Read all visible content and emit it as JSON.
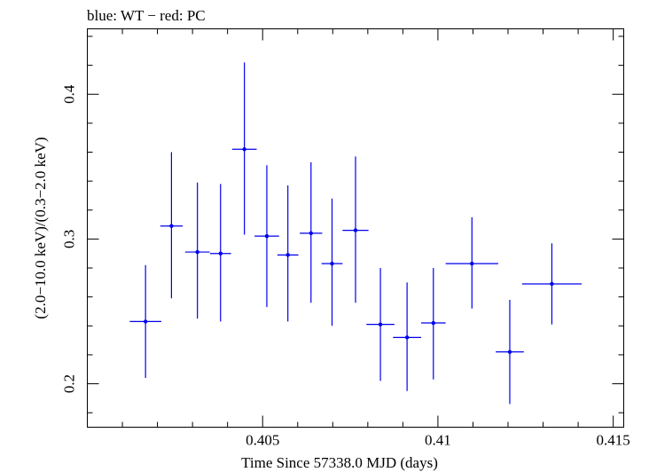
{
  "chart_data": {
    "type": "scatter",
    "title": "blue: WT − red: PC",
    "xlabel": "Time Since 57338.0 MJD (days)",
    "ylabel": "(2.0−10.0 keV)/(0.3−2.0 keV)",
    "xlim": [
      0.4,
      0.4153
    ],
    "ylim": [
      0.17,
      0.4452
    ],
    "x_major_ticks": [
      0.405,
      0.41,
      0.415
    ],
    "x_tick_labels": [
      "0.405",
      "0.41",
      "0.415"
    ],
    "y_major_ticks": [
      0.2,
      0.3,
      0.4
    ],
    "y_tick_labels": [
      "0.2",
      "0.3",
      "0.4"
    ],
    "x_minor_step": 0.001,
    "y_minor_step": 0.02,
    "series": [
      {
        "name": "WT",
        "color": "#0000ee",
        "points": [
          {
            "x": 0.40166,
            "xerr": 0.00045,
            "y": 0.243,
            "ylo": 0.204,
            "yhi": 0.282
          },
          {
            "x": 0.4024,
            "xerr": 0.00032,
            "y": 0.309,
            "ylo": 0.259,
            "yhi": 0.36
          },
          {
            "x": 0.40314,
            "xerr": 0.00035,
            "y": 0.291,
            "ylo": 0.245,
            "yhi": 0.339
          },
          {
            "x": 0.4038,
            "xerr": 0.0003,
            "y": 0.29,
            "ylo": 0.243,
            "yhi": 0.338
          },
          {
            "x": 0.40448,
            "xerr": 0.00035,
            "y": 0.362,
            "ylo": 0.303,
            "yhi": 0.422
          },
          {
            "x": 0.40512,
            "xerr": 0.00035,
            "y": 0.302,
            "ylo": 0.253,
            "yhi": 0.351
          },
          {
            "x": 0.40572,
            "xerr": 0.0003,
            "y": 0.289,
            "ylo": 0.243,
            "yhi": 0.337
          },
          {
            "x": 0.40638,
            "xerr": 0.00032,
            "y": 0.304,
            "ylo": 0.256,
            "yhi": 0.353
          },
          {
            "x": 0.40698,
            "xerr": 0.0003,
            "y": 0.283,
            "ylo": 0.24,
            "yhi": 0.328
          },
          {
            "x": 0.40765,
            "xerr": 0.00037,
            "y": 0.306,
            "ylo": 0.256,
            "yhi": 0.357
          },
          {
            "x": 0.40836,
            "xerr": 0.0004,
            "y": 0.241,
            "ylo": 0.202,
            "yhi": 0.28
          },
          {
            "x": 0.40912,
            "xerr": 0.0004,
            "y": 0.232,
            "ylo": 0.195,
            "yhi": 0.27
          },
          {
            "x": 0.40987,
            "xerr": 0.00035,
            "y": 0.242,
            "ylo": 0.203,
            "yhi": 0.28
          },
          {
            "x": 0.41097,
            "xerr": 0.00075,
            "y": 0.283,
            "ylo": 0.252,
            "yhi": 0.315
          },
          {
            "x": 0.41205,
            "xerr": 0.0004,
            "y": 0.222,
            "ylo": 0.186,
            "yhi": 0.258
          },
          {
            "x": 0.41325,
            "xerr": 0.00085,
            "y": 0.269,
            "ylo": 0.241,
            "yhi": 0.297
          }
        ]
      }
    ]
  }
}
